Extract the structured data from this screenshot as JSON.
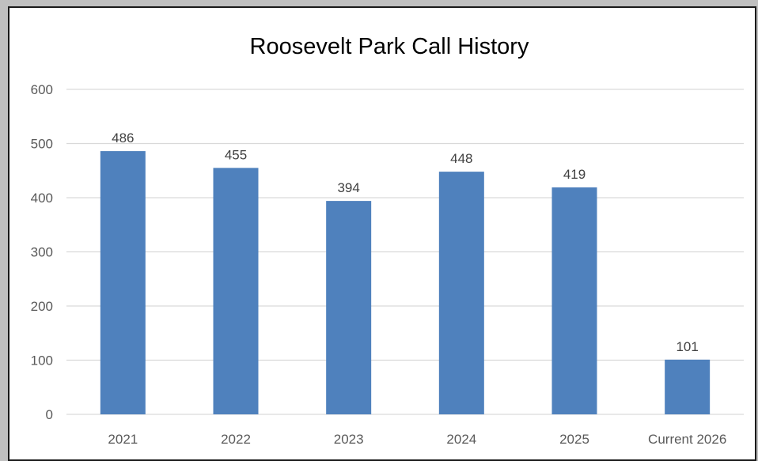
{
  "chart_data": {
    "type": "bar",
    "title": "Roosevelt Park Call History",
    "categories": [
      "2021",
      "2022",
      "2023",
      "2024",
      "2025",
      "Current 2026"
    ],
    "values": [
      486,
      455,
      394,
      448,
      419,
      101
    ],
    "data_labels": [
      "486",
      "455",
      "394",
      "448",
      "419",
      "101"
    ],
    "xlabel": "",
    "ylabel": "",
    "ylim": [
      0,
      600
    ],
    "yticks": [
      0,
      100,
      200,
      300,
      400,
      500,
      600
    ],
    "ytick_labels": [
      "0",
      "100",
      "200",
      "300",
      "400",
      "500",
      "600"
    ],
    "grid": true,
    "legend": "none",
    "bar_color": "#4f81bd",
    "grid_color": "#d9d9d9"
  }
}
